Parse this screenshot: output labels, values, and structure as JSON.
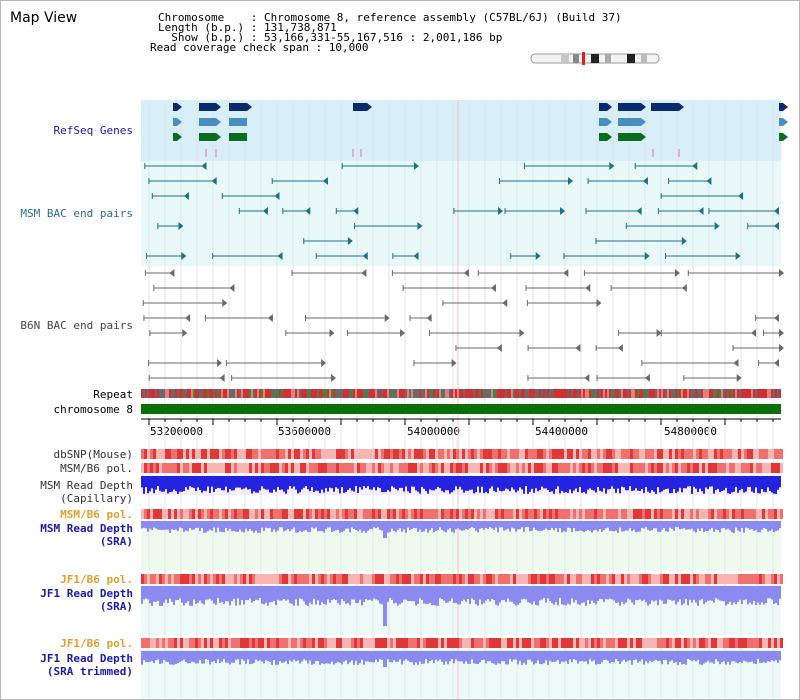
{
  "header": {
    "title": "Map View",
    "chromosome_line": "Chromosome    : Chromosome 8, reference assembly (C57BL/6J) (Build 37)",
    "length_line": "Length (b.p.) : 131,738,871",
    "show_line": "  Show (b.p.) : 53,166,331-55,167,516 : 2,001,186 bp",
    "coverage_line": "Read coverage check span : 10,000"
  },
  "tracks": {
    "refseq": "RefSeq Genes",
    "msm_bac": "MSM BAC end pairs",
    "b6n_bac": "B6N BAC end pairs",
    "repeat": "Repeat",
    "chromosome": "chromosome 8",
    "dbsnp": "dbSNP(Mouse)",
    "msm_b6_pol_1": "MSM/B6 pol.",
    "msm_depth_cap_1": "MSM Read Depth",
    "msm_depth_cap_2": "(Capillary)",
    "msm_b6_pol_2": "MSM/B6 pol.",
    "msm_depth_sra_1": "MSM Read Depth",
    "msm_depth_sra_2": "(SRA)",
    "jf1_b6_pol_1": "JF1/B6 pol.",
    "jf1_depth_sra_1": "JF1 Read Depth",
    "jf1_depth_sra_2": "(SRA)",
    "jf1_b6_pol_2": "JF1/B6 pol.",
    "jf1_depth_trim_1": "JF1 Read Depth",
    "jf1_depth_trim_2": "(SRA trimmed)"
  },
  "ruler": {
    "ticks": [
      "53200000",
      "53600000",
      "54000000",
      "54400000",
      "54800000"
    ]
  },
  "colors": {
    "refseq_bg": "#d8eef9",
    "bac_bg": "#e9f9f9",
    "gene_dark": "#0a2a6e",
    "gene_mid": "#4a8ec0",
    "gene_green": "#0a6e1e",
    "msm_feature": "#1f6f86",
    "b6n_feature": "#6a6a6a",
    "chromosome_bar": "#0a6e0a",
    "pol_red": "#e03030",
    "depth_blue": "#2323e0",
    "depth_light": "#8a8af0"
  }
}
